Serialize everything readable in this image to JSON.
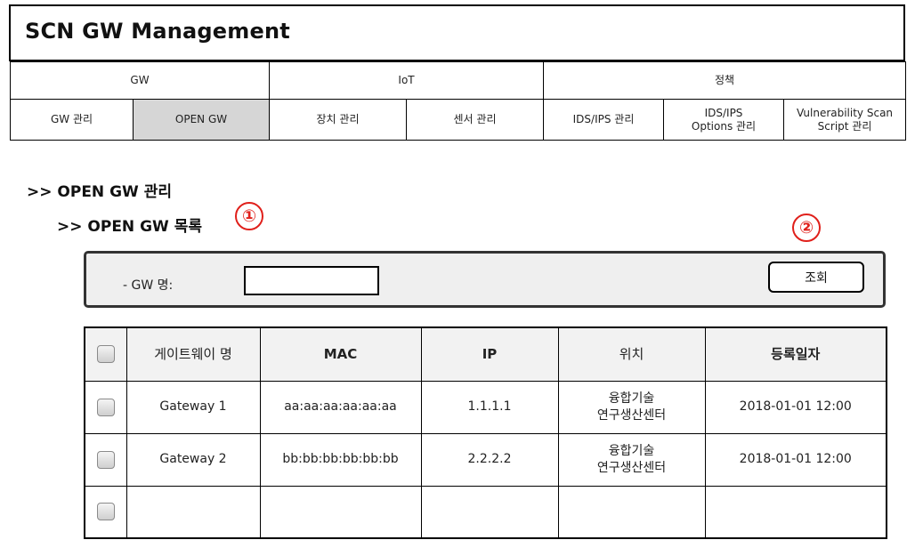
{
  "app": {
    "title": "SCN GW Management"
  },
  "nav": {
    "groups": [
      {
        "label": "GW"
      },
      {
        "label": "IoT"
      },
      {
        "label": "정책"
      }
    ],
    "items": [
      {
        "label": "GW 관리"
      },
      {
        "label": "OPEN GW",
        "active": true
      },
      {
        "label": "장치 관리"
      },
      {
        "label": "센서 관리"
      },
      {
        "label": "IDS/IPS 관리"
      },
      {
        "label_line1": "IDS/IPS",
        "label_line2": "Options 관리"
      },
      {
        "label_line1": "Vulnerability Scan",
        "label_line2": "Script 관리"
      }
    ]
  },
  "page": {
    "heading": ">> OPEN GW 관리",
    "subheading": ">> OPEN GW 목록"
  },
  "markers": [
    "①",
    "②"
  ],
  "search": {
    "label": "- GW 명:",
    "value": "",
    "button_label": "조회"
  },
  "table": {
    "headers": [
      "게이트웨이 명",
      "MAC",
      "IP",
      "위치",
      "등록일자"
    ],
    "rows": [
      {
        "name": "Gateway 1",
        "mac": "aa:aa:aa:aa:aa:aa",
        "ip": "1.1.1.1",
        "location_line1": "융합기술",
        "location_line2": "연구생산센터",
        "date": "2018-01-01  12:00"
      },
      {
        "name": "Gateway 2",
        "mac": "bb:bb:bb:bb:bb:bb",
        "ip": "2.2.2.2",
        "location_line1": "융합기술",
        "location_line2": "연구생산센터",
        "date": "2018-01-01  12:00"
      },
      {
        "name": "",
        "mac": "",
        "ip": "",
        "location_line1": "",
        "location_line2": "",
        "date": ""
      }
    ]
  },
  "colors": {
    "accent_marker": "#e0201b",
    "active_tab": "#d6d6d6",
    "panel_bg": "#efefef"
  }
}
